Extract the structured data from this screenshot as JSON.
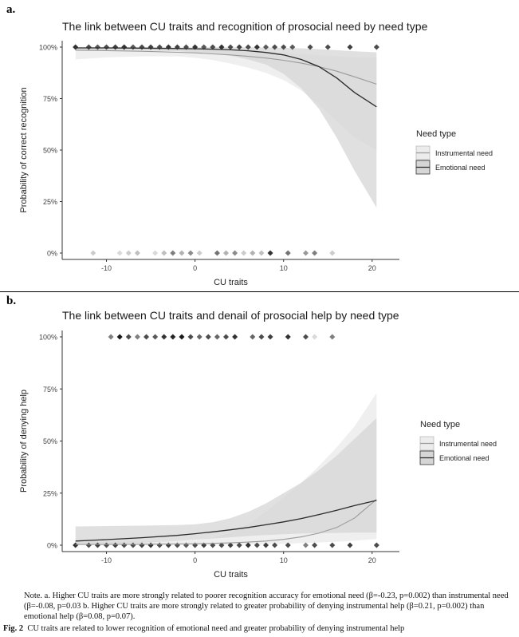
{
  "panels": [
    {
      "label": "a."
    },
    {
      "label": "b."
    }
  ],
  "colors": {
    "instrumental_line": "#9a9a9a",
    "emotional_line": "#2b2b2b",
    "instrumental_ribbon": "#ececec",
    "emotional_ribbon": "#d6d6d6"
  },
  "chart_data": [
    {
      "type": "line",
      "title": "The link between CU traits and recognition of prosocial need by need type",
      "xlabel": "CU traits",
      "ylabel": "Probability of correct recognition",
      "xlim": [
        -15,
        22
      ],
      "ylim": [
        0,
        1
      ],
      "xticks": [
        -10,
        0,
        10,
        20
      ],
      "xtick_labels": [
        "-10",
        "0",
        "10",
        "20"
      ],
      "yticks": [
        0,
        0.25,
        0.5,
        0.75,
        1.0
      ],
      "ytick_labels": [
        "0%",
        "25%",
        "50%",
        "75%",
        "100%"
      ],
      "legend_title": "Need type",
      "legend_position": "right",
      "grid": false,
      "series": [
        {
          "name": "Instrumental need",
          "x": [
            -13.5,
            -10,
            -6,
            -2,
            0,
            2,
            4,
            6,
            8,
            10,
            12,
            14,
            16,
            18,
            20.5
          ],
          "y": [
            0.985,
            0.983,
            0.98,
            0.975,
            0.972,
            0.967,
            0.962,
            0.955,
            0.947,
            0.936,
            0.922,
            0.905,
            0.883,
            0.856,
            0.82
          ],
          "lower": [
            0.94,
            0.95,
            0.955,
            0.955,
            0.948,
            0.937,
            0.92,
            0.9,
            0.875,
            0.84,
            0.79,
            0.72,
            0.64,
            0.56,
            0.5
          ],
          "upper": [
            0.998,
            0.997,
            0.996,
            0.993,
            0.99,
            0.988,
            0.985,
            0.982,
            0.978,
            0.972,
            0.965,
            0.96,
            0.955,
            0.95,
            0.95
          ]
        },
        {
          "name": "Emotional need",
          "x": [
            -13.5,
            -10,
            -6,
            -2,
            0,
            2,
            4,
            6,
            8,
            10,
            12,
            14,
            16,
            18,
            20.5
          ],
          "y": [
            0.996,
            0.996,
            0.995,
            0.993,
            0.992,
            0.99,
            0.987,
            0.982,
            0.974,
            0.962,
            0.94,
            0.905,
            0.85,
            0.78,
            0.71
          ],
          "lower": [
            0.985,
            0.986,
            0.985,
            0.98,
            0.975,
            0.968,
            0.958,
            0.94,
            0.915,
            0.87,
            0.8,
            0.7,
            0.56,
            0.4,
            0.22
          ],
          "upper": [
            0.999,
            0.999,
            0.999,
            0.999,
            0.999,
            0.999,
            0.999,
            0.999,
            0.998,
            0.996,
            0.994,
            0.99,
            0.985,
            0.98,
            0.975
          ]
        }
      ],
      "points": [
        {
          "x": -13.5,
          "y": 1,
          "shade": 0.2
        },
        {
          "x": -12,
          "y": 1,
          "shade": 0.3
        },
        {
          "x": -11,
          "y": 1,
          "shade": 0.35
        },
        {
          "x": -10,
          "y": 1,
          "shade": 0.3
        },
        {
          "x": -9,
          "y": 1,
          "shade": 0.25
        },
        {
          "x": -8,
          "y": 1,
          "shade": 0.2
        },
        {
          "x": -7,
          "y": 1,
          "shade": 0.35
        },
        {
          "x": -6,
          "y": 1,
          "shade": 0.3
        },
        {
          "x": -5,
          "y": 1,
          "shade": 0.25
        },
        {
          "x": -4,
          "y": 1,
          "shade": 0.3
        },
        {
          "x": -3,
          "y": 1,
          "shade": 0.2
        },
        {
          "x": -2,
          "y": 1,
          "shade": 0.25
        },
        {
          "x": -1,
          "y": 1,
          "shade": 0.3
        },
        {
          "x": 0,
          "y": 1,
          "shade": 0.2
        },
        {
          "x": 1,
          "y": 1,
          "shade": 0.35
        },
        {
          "x": 2,
          "y": 1,
          "shade": 0.3
        },
        {
          "x": 3,
          "y": 1,
          "shade": 0.2
        },
        {
          "x": 4,
          "y": 1,
          "shade": 0.3
        },
        {
          "x": 5,
          "y": 1,
          "shade": 0.25
        },
        {
          "x": 6,
          "y": 1,
          "shade": 0.3
        },
        {
          "x": 7,
          "y": 1,
          "shade": 0.2
        },
        {
          "x": 8,
          "y": 1,
          "shade": 0.35
        },
        {
          "x": 9,
          "y": 1,
          "shade": 0.3
        },
        {
          "x": 10,
          "y": 1,
          "shade": 0.3
        },
        {
          "x": 11,
          "y": 1,
          "shade": 0.35
        },
        {
          "x": 13,
          "y": 1,
          "shade": 0.3
        },
        {
          "x": 15,
          "y": 1,
          "shade": 0.3
        },
        {
          "x": 17.5,
          "y": 1,
          "shade": 0.25
        },
        {
          "x": 20.5,
          "y": 1,
          "shade": 0.3
        },
        {
          "x": -11.5,
          "y": 0,
          "shade": 0.8
        },
        {
          "x": -8.5,
          "y": 0,
          "shade": 0.85
        },
        {
          "x": -7.5,
          "y": 0,
          "shade": 0.8
        },
        {
          "x": -6.5,
          "y": 0,
          "shade": 0.75
        },
        {
          "x": -4.5,
          "y": 0,
          "shade": 0.85
        },
        {
          "x": -3.5,
          "y": 0,
          "shade": 0.75
        },
        {
          "x": -2.5,
          "y": 0,
          "shade": 0.5
        },
        {
          "x": -1.5,
          "y": 0,
          "shade": 0.7
        },
        {
          "x": -0.5,
          "y": 0,
          "shade": 0.55
        },
        {
          "x": 0.5,
          "y": 0,
          "shade": 0.8
        },
        {
          "x": 2.5,
          "y": 0,
          "shade": 0.45
        },
        {
          "x": 3.5,
          "y": 0,
          "shade": 0.7
        },
        {
          "x": 4.5,
          "y": 0,
          "shade": 0.55
        },
        {
          "x": 5.5,
          "y": 0,
          "shade": 0.8
        },
        {
          "x": 6.5,
          "y": 0,
          "shade": 0.7
        },
        {
          "x": 7.5,
          "y": 0,
          "shade": 0.75
        },
        {
          "x": 8.5,
          "y": 0,
          "shade": 0.2
        },
        {
          "x": 10.5,
          "y": 0,
          "shade": 0.45
        },
        {
          "x": 12.5,
          "y": 0,
          "shade": 0.6
        },
        {
          "x": 13.5,
          "y": 0,
          "shade": 0.5
        },
        {
          "x": 15.5,
          "y": 0,
          "shade": 0.8
        }
      ]
    },
    {
      "type": "line",
      "title": "The link between CU traits and denail of prosocial help by need type",
      "xlabel": "CU traits",
      "ylabel": "Probability of denying help",
      "xlim": [
        -15,
        22
      ],
      "ylim": [
        0,
        1
      ],
      "xticks": [
        -10,
        0,
        10,
        20
      ],
      "xtick_labels": [
        "-10",
        "0",
        "10",
        "20"
      ],
      "yticks": [
        0,
        0.25,
        0.5,
        0.75,
        1.0
      ],
      "ytick_labels": [
        "0%",
        "25%",
        "50%",
        "75%",
        "100%"
      ],
      "legend_title": "Need type",
      "legend_position": "right",
      "grid": false,
      "series": [
        {
          "name": "Instrumental need",
          "x": [
            -13.5,
            -10,
            -6,
            -2,
            0,
            2,
            4,
            6,
            8,
            10,
            12,
            14,
            16,
            18,
            20.5
          ],
          "y": [
            0.004,
            0.004,
            0.005,
            0.006,
            0.007,
            0.009,
            0.011,
            0.015,
            0.02,
            0.028,
            0.04,
            0.058,
            0.085,
            0.13,
            0.22
          ],
          "lower": [
            0.0,
            0.0,
            0.0,
            0.001,
            0.001,
            0.002,
            0.003,
            0.004,
            0.005,
            0.007,
            0.01,
            0.013,
            0.017,
            0.022,
            0.03
          ],
          "upper": [
            0.015,
            0.016,
            0.018,
            0.02,
            0.024,
            0.035,
            0.06,
            0.1,
            0.16,
            0.23,
            0.3,
            0.38,
            0.47,
            0.57,
            0.73
          ]
        },
        {
          "name": "Emotional need",
          "x": [
            -13.5,
            -10,
            -6,
            -2,
            0,
            2,
            4,
            6,
            8,
            10,
            12,
            14,
            16,
            18,
            20.5
          ],
          "y": [
            0.02,
            0.027,
            0.036,
            0.047,
            0.055,
            0.064,
            0.074,
            0.085,
            0.098,
            0.112,
            0.128,
            0.147,
            0.168,
            0.19,
            0.215
          ],
          "lower": [
            0.0,
            0.005,
            0.012,
            0.02,
            0.026,
            0.032,
            0.038,
            0.044,
            0.049,
            0.053,
            0.056,
            0.058,
            0.059,
            0.06,
            0.06
          ],
          "upper": [
            0.09,
            0.092,
            0.094,
            0.097,
            0.1,
            0.11,
            0.13,
            0.16,
            0.2,
            0.25,
            0.3,
            0.36,
            0.43,
            0.51,
            0.61
          ]
        }
      ],
      "points": [
        {
          "x": -9.5,
          "y": 1,
          "shade": 0.5
        },
        {
          "x": -8.5,
          "y": 1,
          "shade": 0.1
        },
        {
          "x": -7.5,
          "y": 1,
          "shade": 0.3
        },
        {
          "x": -6.5,
          "y": 1,
          "shade": 0.5
        },
        {
          "x": -5.5,
          "y": 1,
          "shade": 0.3
        },
        {
          "x": -4.5,
          "y": 1,
          "shade": 0.35
        },
        {
          "x": -3.5,
          "y": 1,
          "shade": 0.2
        },
        {
          "x": -2.5,
          "y": 1,
          "shade": 0.15
        },
        {
          "x": -1.5,
          "y": 1,
          "shade": 0.1
        },
        {
          "x": -0.5,
          "y": 1,
          "shade": 0.3
        },
        {
          "x": 0.5,
          "y": 1,
          "shade": 0.4
        },
        {
          "x": 1.5,
          "y": 1,
          "shade": 0.3
        },
        {
          "x": 2.5,
          "y": 1,
          "shade": 0.4
        },
        {
          "x": 3.5,
          "y": 1,
          "shade": 0.3
        },
        {
          "x": 4.5,
          "y": 1,
          "shade": 0.2
        },
        {
          "x": 6.5,
          "y": 1,
          "shade": 0.4
        },
        {
          "x": 7.5,
          "y": 1,
          "shade": 0.3
        },
        {
          "x": 8.5,
          "y": 1,
          "shade": 0.25
        },
        {
          "x": 10.5,
          "y": 1,
          "shade": 0.2
        },
        {
          "x": 12.5,
          "y": 1,
          "shade": 0.3
        },
        {
          "x": 13.5,
          "y": 1,
          "shade": 0.85
        },
        {
          "x": 15.5,
          "y": 1,
          "shade": 0.5
        },
        {
          "x": -13.5,
          "y": 0,
          "shade": 0.2
        },
        {
          "x": -12,
          "y": 0,
          "shade": 0.3
        },
        {
          "x": -11,
          "y": 0,
          "shade": 0.25
        },
        {
          "x": -10,
          "y": 0,
          "shade": 0.3
        },
        {
          "x": -9,
          "y": 0,
          "shade": 0.25
        },
        {
          "x": -8,
          "y": 0,
          "shade": 0.3
        },
        {
          "x": -7,
          "y": 0,
          "shade": 0.3
        },
        {
          "x": -6,
          "y": 0,
          "shade": 0.25
        },
        {
          "x": -5,
          "y": 0,
          "shade": 0.2
        },
        {
          "x": -4,
          "y": 0,
          "shade": 0.3
        },
        {
          "x": -3,
          "y": 0,
          "shade": 0.25
        },
        {
          "x": -2,
          "y": 0,
          "shade": 0.3
        },
        {
          "x": -1,
          "y": 0,
          "shade": 0.35
        },
        {
          "x": 0,
          "y": 0,
          "shade": 0.3
        },
        {
          "x": 1,
          "y": 0,
          "shade": 0.25
        },
        {
          "x": 2,
          "y": 0,
          "shade": 0.3
        },
        {
          "x": 3,
          "y": 0,
          "shade": 0.3
        },
        {
          "x": 4,
          "y": 0,
          "shade": 0.25
        },
        {
          "x": 5,
          "y": 0,
          "shade": 0.3
        },
        {
          "x": 6,
          "y": 0,
          "shade": 0.2
        },
        {
          "x": 7,
          "y": 0,
          "shade": 0.3
        },
        {
          "x": 8,
          "y": 0,
          "shade": 0.25
        },
        {
          "x": 9,
          "y": 0,
          "shade": 0.3
        },
        {
          "x": 10.5,
          "y": 0,
          "shade": 0.3
        },
        {
          "x": 12.5,
          "y": 0,
          "shade": 0.5
        },
        {
          "x": 13.5,
          "y": 0,
          "shade": 0.3
        },
        {
          "x": 15.5,
          "y": 0,
          "shade": 0.3
        },
        {
          "x": 17.5,
          "y": 0,
          "shade": 0.25
        },
        {
          "x": 20.5,
          "y": 0,
          "shade": 0.3
        }
      ]
    }
  ],
  "note": {
    "text": "Note. a. Higher CU traits are more strongly related to poorer recognition accuracy for emotional need (β=-0.23, p=0.002) than instrumental need (β=-0.08, p=0.03 b. Higher CU traits are more strongly related to greater probability of denying instrumental help (β=0.21, p=0.002) than emotional help (β=0.08, p=0.07)."
  },
  "caption": {
    "label": "Fig. 2",
    "text": "CU traits are related to lower recognition of emotional need and greater probability of denying instrumental help"
  }
}
